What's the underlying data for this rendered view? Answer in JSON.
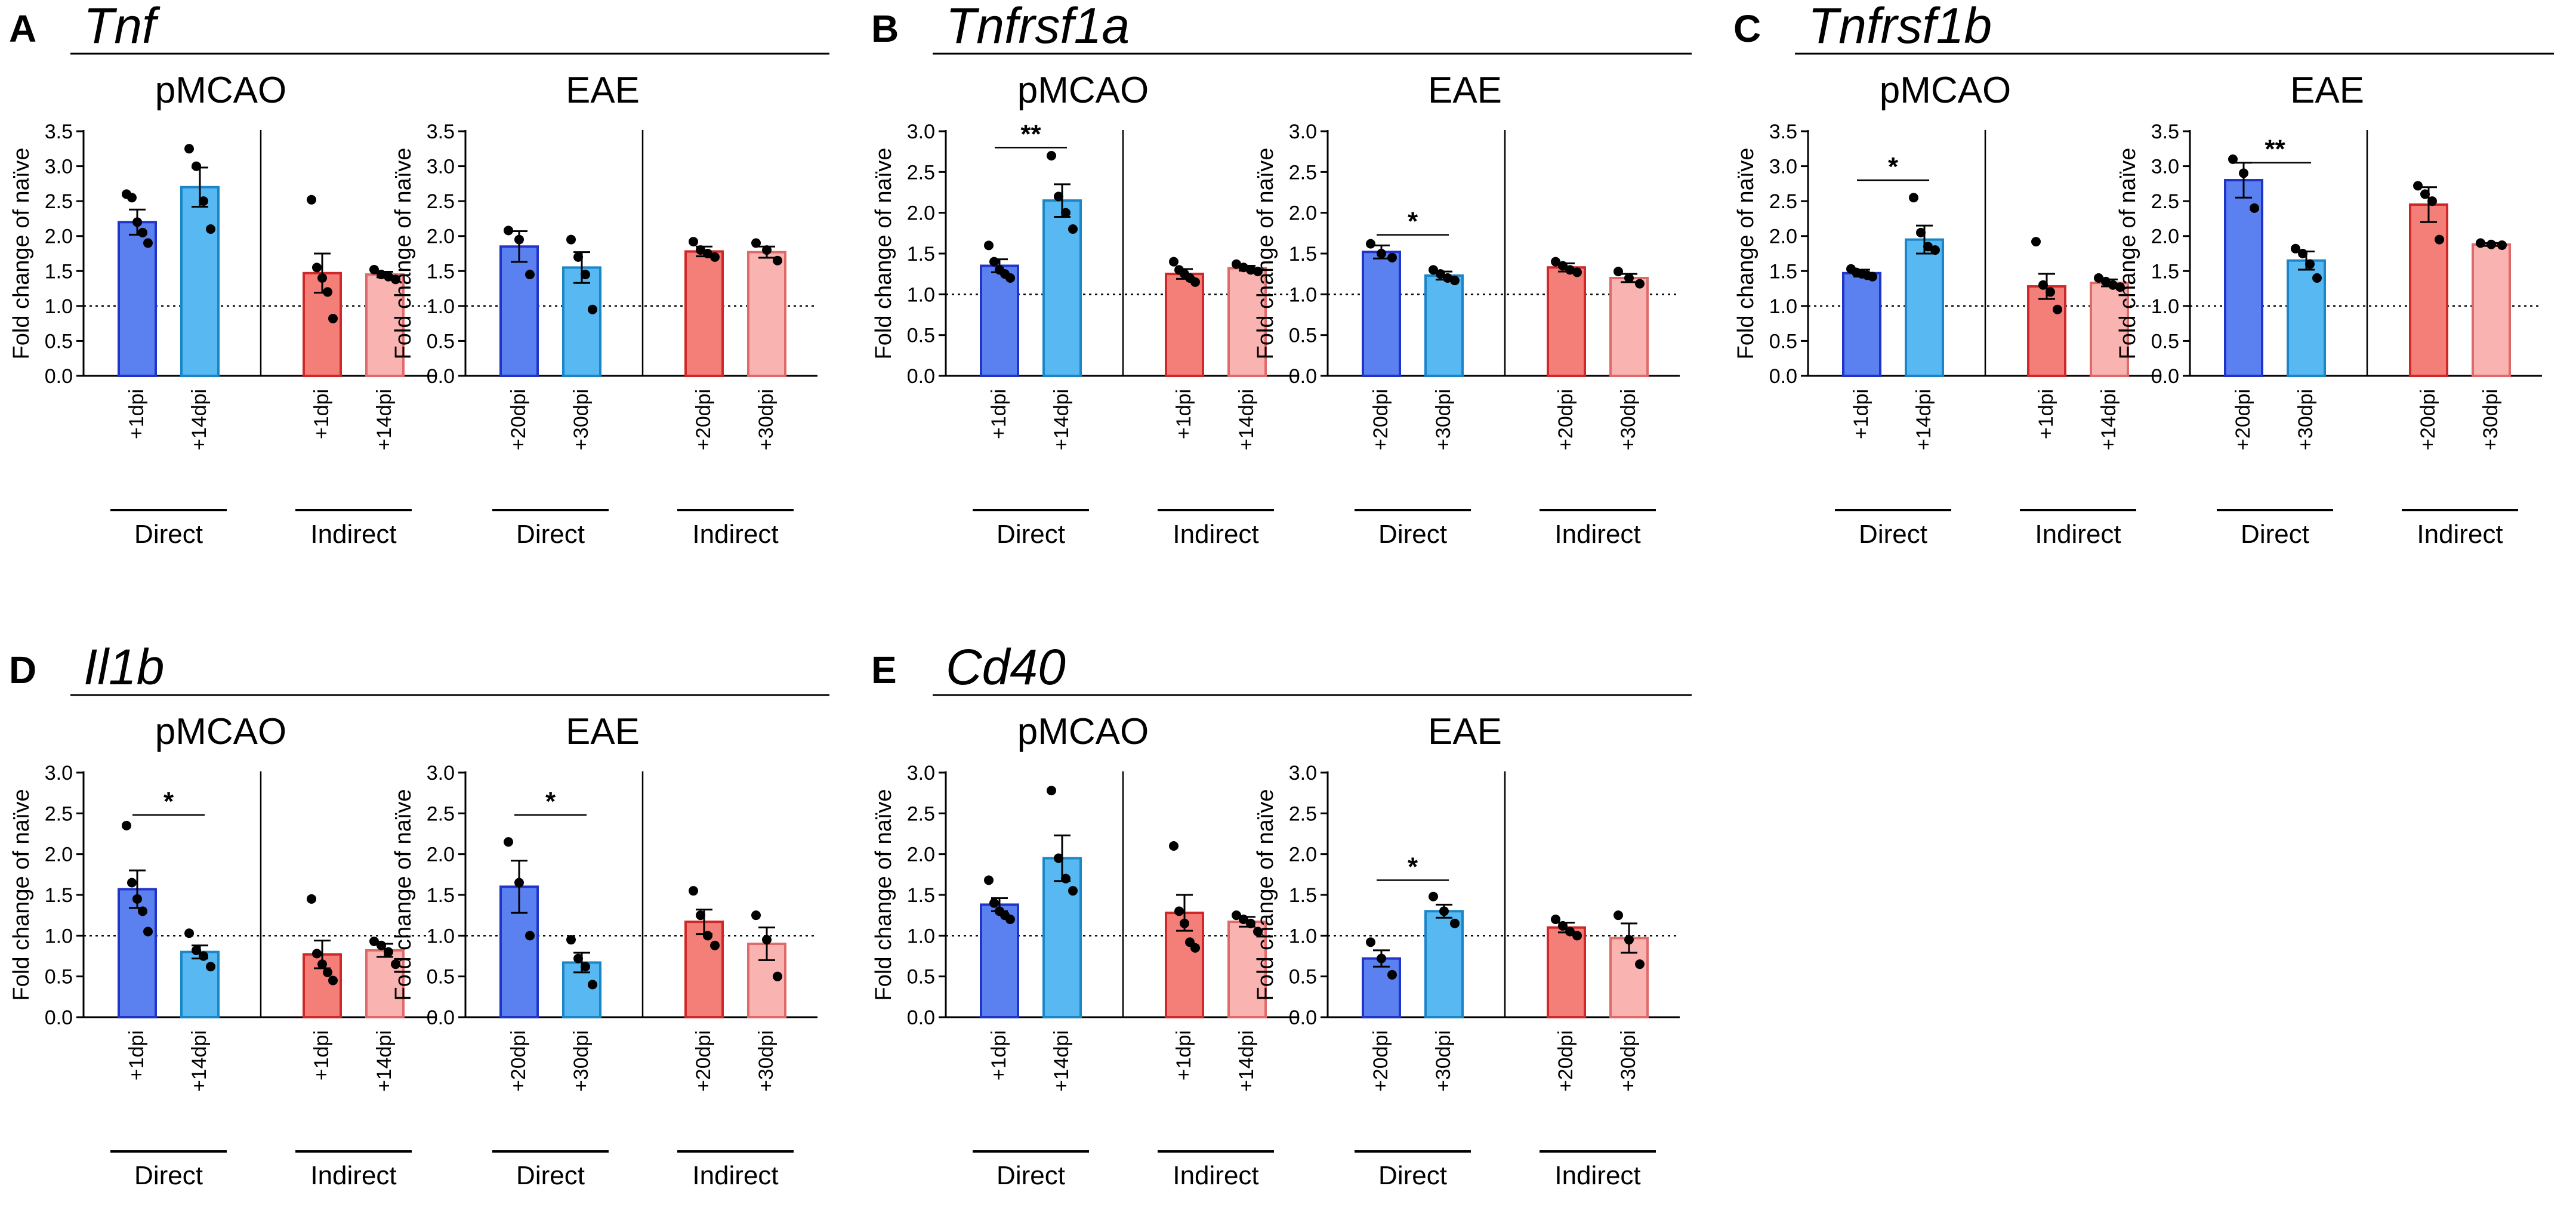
{
  "colors": {
    "direct_early_fill": "#5b80f0",
    "direct_early_stroke": "#2034c8",
    "direct_late_fill": "#58b9f2",
    "direct_late_stroke": "#1a86c8",
    "indirect_early_fill": "#f47f78",
    "indirect_early_stroke": "#d02828",
    "indirect_late_fill": "#f9b4b2",
    "indirect_late_stroke": "#e06a6a"
  },
  "common": {
    "ylabel": "Fold change of naïve",
    "models": [
      "pMCAO",
      "EAE"
    ],
    "groups": [
      "Direct",
      "Indirect"
    ],
    "pmcao_timepoints": [
      "+1dpi",
      "+14dpi"
    ],
    "eae_timepoints": [
      "+20dpi",
      "+30dpi"
    ],
    "reference_line": 1.0
  },
  "chart_data": [
    {
      "type": "bar",
      "panel": "A",
      "gene": "Tnf",
      "ylim": [
        0,
        3.5
      ],
      "pMCAO": {
        "bars": [
          {
            "group": "Direct",
            "x": "+1dpi",
            "value": 2.2,
            "sem": 0.18,
            "points": [
              2.6,
              2.55,
              2.2,
              2.05,
              1.9
            ]
          },
          {
            "group": "Direct",
            "x": "+14dpi",
            "value": 2.7,
            "sem": 0.28,
            "points": [
              3.25,
              3.0,
              2.5,
              2.1
            ]
          },
          {
            "group": "Indirect",
            "x": "+1dpi",
            "value": 1.47,
            "sem": 0.28,
            "points": [
              2.52,
              1.55,
              1.4,
              1.2,
              0.82
            ]
          },
          {
            "group": "Indirect",
            "x": "+14dpi",
            "value": 1.45,
            "sem": 0.04,
            "points": [
              1.52,
              1.45,
              1.42,
              1.38
            ]
          }
        ],
        "significance": []
      },
      "EAE": {
        "bars": [
          {
            "group": "Direct",
            "x": "+20dpi",
            "value": 1.85,
            "sem": 0.22,
            "points": [
              2.08,
              1.95,
              1.45
            ]
          },
          {
            "group": "Direct",
            "x": "+30dpi",
            "value": 1.55,
            "sem": 0.22,
            "points": [
              1.95,
              1.7,
              1.45,
              0.95
            ]
          },
          {
            "group": "Indirect",
            "x": "+20dpi",
            "value": 1.78,
            "sem": 0.07,
            "points": [
              1.92,
              1.8,
              1.75,
              1.7
            ]
          },
          {
            "group": "Indirect",
            "x": "+30dpi",
            "value": 1.77,
            "sem": 0.08,
            "points": [
              1.9,
              1.8,
              1.65
            ]
          }
        ],
        "significance": []
      }
    },
    {
      "type": "bar",
      "panel": "B",
      "gene": "Tnfrsf1a",
      "ylim": [
        0,
        3.0
      ],
      "pMCAO": {
        "bars": [
          {
            "group": "Direct",
            "x": "+1dpi",
            "value": 1.35,
            "sem": 0.08,
            "points": [
              1.6,
              1.4,
              1.3,
              1.25,
              1.2
            ]
          },
          {
            "group": "Direct",
            "x": "+14dpi",
            "value": 2.15,
            "sem": 0.2,
            "points": [
              2.7,
              2.2,
              2.0,
              1.8
            ]
          },
          {
            "group": "Indirect",
            "x": "+1dpi",
            "value": 1.25,
            "sem": 0.06,
            "points": [
              1.4,
              1.3,
              1.25,
              1.2,
              1.15
            ]
          },
          {
            "group": "Indirect",
            "x": "+14dpi",
            "value": 1.32,
            "sem": 0.03,
            "points": [
              1.37,
              1.33,
              1.3,
              1.28
            ]
          }
        ],
        "significance": [
          {
            "pair": [
              0,
              1
            ],
            "label": "**",
            "y": 2.8
          }
        ]
      },
      "EAE": {
        "bars": [
          {
            "group": "Direct",
            "x": "+20dpi",
            "value": 1.52,
            "sem": 0.08,
            "points": [
              1.62,
              1.5,
              1.45
            ]
          },
          {
            "group": "Direct",
            "x": "+30dpi",
            "value": 1.23,
            "sem": 0.05,
            "points": [
              1.3,
              1.25,
              1.2,
              1.17
            ]
          },
          {
            "group": "Indirect",
            "x": "+20dpi",
            "value": 1.33,
            "sem": 0.05,
            "points": [
              1.4,
              1.35,
              1.3,
              1.27
            ]
          },
          {
            "group": "Indirect",
            "x": "+30dpi",
            "value": 1.2,
            "sem": 0.05,
            "points": [
              1.28,
              1.2,
              1.13
            ]
          }
        ],
        "significance": [
          {
            "pair": [
              0,
              1
            ],
            "label": "*",
            "y": 1.73
          }
        ]
      }
    },
    {
      "type": "bar",
      "panel": "C",
      "gene": "Tnfrsf1b",
      "ylim": [
        0,
        3.5
      ],
      "pMCAO": {
        "bars": [
          {
            "group": "Direct",
            "x": "+1dpi",
            "value": 1.47,
            "sem": 0.05,
            "points": [
              1.53,
              1.48,
              1.46,
              1.44,
              1.42
            ]
          },
          {
            "group": "Direct",
            "x": "+14dpi",
            "value": 1.95,
            "sem": 0.2,
            "points": [
              2.55,
              2.05,
              1.85,
              1.8
            ]
          },
          {
            "group": "Indirect",
            "x": "+1dpi",
            "value": 1.28,
            "sem": 0.18,
            "points": [
              1.92,
              1.3,
              1.2,
              0.95
            ]
          },
          {
            "group": "Indirect",
            "x": "+14dpi",
            "value": 1.33,
            "sem": 0.05,
            "points": [
              1.4,
              1.35,
              1.3,
              1.27
            ]
          }
        ],
        "significance": [
          {
            "pair": [
              0,
              1
            ],
            "label": "*",
            "y": 2.8
          }
        ]
      },
      "EAE": {
        "bars": [
          {
            "group": "Direct",
            "x": "+20dpi",
            "value": 2.8,
            "sem": 0.25,
            "points": [
              3.1,
              2.9,
              2.4
            ]
          },
          {
            "group": "Direct",
            "x": "+30dpi",
            "value": 1.65,
            "sem": 0.13,
            "points": [
              1.82,
              1.75,
              1.6,
              1.4
            ]
          },
          {
            "group": "Indirect",
            "x": "+20dpi",
            "value": 2.45,
            "sem": 0.25,
            "points": [
              2.72,
              2.6,
              2.5,
              1.95
            ]
          },
          {
            "group": "Indirect",
            "x": "+30dpi",
            "value": 1.88,
            "sem": 0.02,
            "points": [
              1.9,
              1.88,
              1.87
            ]
          }
        ],
        "significance": [
          {
            "pair": [
              0,
              1
            ],
            "label": "**",
            "y": 3.05
          }
        ]
      }
    },
    {
      "type": "bar",
      "panel": "D",
      "gene": "Il1b",
      "ylim": [
        0,
        3.0
      ],
      "pMCAO": {
        "bars": [
          {
            "group": "Direct",
            "x": "+1dpi",
            "value": 1.57,
            "sem": 0.23,
            "points": [
              2.35,
              1.65,
              1.45,
              1.3,
              1.05
            ]
          },
          {
            "group": "Direct",
            "x": "+14dpi",
            "value": 0.8,
            "sem": 0.08,
            "points": [
              1.03,
              0.82,
              0.75,
              0.62
            ]
          },
          {
            "group": "Indirect",
            "x": "+1dpi",
            "value": 0.77,
            "sem": 0.17,
            "points": [
              1.45,
              0.78,
              0.65,
              0.55,
              0.45
            ]
          },
          {
            "group": "Indirect",
            "x": "+14dpi",
            "value": 0.82,
            "sem": 0.08,
            "points": [
              0.93,
              0.88,
              0.8,
              0.65
            ]
          }
        ],
        "significance": [
          {
            "pair": [
              0,
              1
            ],
            "label": "*",
            "y": 2.48
          }
        ]
      },
      "EAE": {
        "bars": [
          {
            "group": "Direct",
            "x": "+20dpi",
            "value": 1.6,
            "sem": 0.32,
            "points": [
              2.15,
              1.65,
              1.0
            ]
          },
          {
            "group": "Direct",
            "x": "+30dpi",
            "value": 0.67,
            "sem": 0.12,
            "points": [
              0.95,
              0.72,
              0.62,
              0.4
            ]
          },
          {
            "group": "Indirect",
            "x": "+20dpi",
            "value": 1.17,
            "sem": 0.15,
            "points": [
              1.55,
              1.25,
              1.0,
              0.88
            ]
          },
          {
            "group": "Indirect",
            "x": "+30dpi",
            "value": 0.9,
            "sem": 0.2,
            "points": [
              1.25,
              0.95,
              0.5
            ]
          }
        ],
        "significance": [
          {
            "pair": [
              0,
              1
            ],
            "label": "*",
            "y": 2.48
          }
        ]
      }
    },
    {
      "type": "bar",
      "panel": "E",
      "gene": "Cd40",
      "ylim": [
        0,
        3.0
      ],
      "pMCAO": {
        "bars": [
          {
            "group": "Direct",
            "x": "+1dpi",
            "value": 1.38,
            "sem": 0.08,
            "points": [
              1.68,
              1.4,
              1.3,
              1.25,
              1.2
            ]
          },
          {
            "group": "Direct",
            "x": "+14dpi",
            "value": 1.95,
            "sem": 0.28,
            "points": [
              2.78,
              1.95,
              1.7,
              1.55
            ]
          },
          {
            "group": "Indirect",
            "x": "+1dpi",
            "value": 1.28,
            "sem": 0.22,
            "points": [
              2.1,
              1.3,
              1.15,
              0.92,
              0.85
            ]
          },
          {
            "group": "Indirect",
            "x": "+14dpi",
            "value": 1.17,
            "sem": 0.06,
            "points": [
              1.25,
              1.2,
              1.15,
              1.05
            ]
          }
        ],
        "significance": []
      },
      "EAE": {
        "bars": [
          {
            "group": "Direct",
            "x": "+20dpi",
            "value": 0.72,
            "sem": 0.1,
            "points": [
              0.92,
              0.72,
              0.52
            ]
          },
          {
            "group": "Direct",
            "x": "+30dpi",
            "value": 1.3,
            "sem": 0.08,
            "points": [
              1.48,
              1.3,
              1.15
            ]
          },
          {
            "group": "Indirect",
            "x": "+20dpi",
            "value": 1.1,
            "sem": 0.06,
            "points": [
              1.2,
              1.12,
              1.05,
              1.0
            ]
          },
          {
            "group": "Indirect",
            "x": "+30dpi",
            "value": 0.97,
            "sem": 0.18,
            "points": [
              1.25,
              0.95,
              0.65
            ]
          }
        ],
        "significance": [
          {
            "pair": [
              0,
              1
            ],
            "label": "*",
            "y": 1.68
          }
        ]
      }
    }
  ]
}
